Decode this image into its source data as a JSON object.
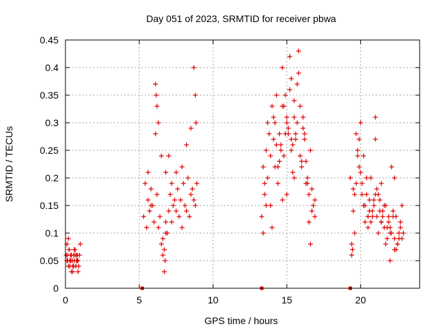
{
  "chart_data": {
    "type": "scatter",
    "title": "Day 051 of 2023, SRMTID for receiver pbwa",
    "xlabel": "GPS time / hours",
    "ylabel": "SRMTID / TECUs",
    "xlim": [
      0,
      24
    ],
    "ylim": [
      0,
      0.45
    ],
    "xticks": [
      "0",
      "5",
      "10",
      "15",
      "20"
    ],
    "xtick_values": [
      0,
      5,
      10,
      15,
      20
    ],
    "yticks": [
      "0",
      "0.05",
      "0.1",
      "0.15",
      "0.2",
      "0.25",
      "0.3",
      "0.35",
      "0.4",
      "0.45"
    ],
    "ytick_values": [
      0,
      0.05,
      0.1,
      0.15,
      0.2,
      0.25,
      0.3,
      0.35,
      0.4,
      0.45
    ],
    "grid": true,
    "marker": "+",
    "color": "#e00000",
    "zero_markers_x": [
      5.2,
      13.3,
      19.3
    ],
    "series": [
      {
        "name": "pbwa",
        "x": [
          0.05,
          0.1,
          0.15,
          0.2,
          0.25,
          0.3,
          0.35,
          0.4,
          0.45,
          0.5,
          0.55,
          0.6,
          0.65,
          0.7,
          0.75,
          0.8,
          0.85,
          0.9,
          0.95,
          1.0,
          0.1,
          0.2,
          0.3,
          0.4,
          0.5,
          0.6,
          0.7,
          0.8,
          0.15,
          0.35,
          0.55,
          0.75,
          0.25,
          0.45,
          0.65,
          0.85,
          5.3,
          5.4,
          5.5,
          5.6,
          5.7,
          5.8,
          5.9,
          6.0,
          6.1,
          6.2,
          6.3,
          6.4,
          6.5,
          6.6,
          6.7,
          6.8,
          6.9,
          7.0,
          7.1,
          7.2,
          7.3,
          7.4,
          7.5,
          7.6,
          7.7,
          7.8,
          7.9,
          8.0,
          8.1,
          8.2,
          8.3,
          8.4,
          8.5,
          8.6,
          8.7,
          8.8,
          8.9,
          6.1,
          6.15,
          6.2,
          6.3,
          6.5,
          6.8,
          7.0,
          7.2,
          7.5,
          8.5,
          8.7,
          8.8,
          8.85,
          6.7,
          6.75,
          6.8,
          6.6,
          5.6,
          5.8,
          7.9,
          8.2,
          13.3,
          13.4,
          13.5,
          13.6,
          13.7,
          13.8,
          13.9,
          14.0,
          14.1,
          14.2,
          14.3,
          14.4,
          14.5,
          14.6,
          14.7,
          14.8,
          14.9,
          15.0,
          15.1,
          15.2,
          15.3,
          15.4,
          15.5,
          15.6,
          15.7,
          15.8,
          15.9,
          16.0,
          16.1,
          16.2,
          16.3,
          16.4,
          16.5,
          16.6,
          16.7,
          16.8,
          16.9,
          13.5,
          13.7,
          13.9,
          14.1,
          14.3,
          14.5,
          14.7,
          14.9,
          15.1,
          15.3,
          15.5,
          15.7,
          15.9,
          16.1,
          16.3,
          16.5,
          16.7,
          14.2,
          14.4,
          14.6,
          14.8,
          15.0,
          15.2,
          15.4,
          15.6,
          15.8,
          16.0,
          16.2,
          16.4,
          13.4,
          13.6,
          14.0,
          15.0,
          15.5,
          16.6,
          16.9,
          14.7,
          15.3,
          19.3,
          19.4,
          19.5,
          19.6,
          19.7,
          19.8,
          19.9,
          20.0,
          20.1,
          20.2,
          20.3,
          20.4,
          20.5,
          20.6,
          20.7,
          20.8,
          20.9,
          21.0,
          21.1,
          21.2,
          21.3,
          21.4,
          21.5,
          21.6,
          21.7,
          21.8,
          21.9,
          22.0,
          22.1,
          22.2,
          22.3,
          22.4,
          22.5,
          22.6,
          22.7,
          22.8,
          22.9,
          19.6,
          19.8,
          20.0,
          20.2,
          20.4,
          20.6,
          20.8,
          21.0,
          21.2,
          21.4,
          21.6,
          21.8,
          22.0,
          22.2,
          22.4,
          22.6,
          22.8,
          19.5,
          19.7,
          19.9,
          20.1,
          20.3,
          20.5,
          20.7,
          20.9,
          21.1,
          21.3,
          21.5,
          21.7,
          21.9,
          22.1,
          22.3,
          22.5,
          22.7,
          19.4,
          19.45,
          20.5,
          21.0,
          21.4,
          22.0,
          22.3
        ],
        "y": [
          0.06,
          0.08,
          0.05,
          0.04,
          0.07,
          0.05,
          0.06,
          0.03,
          0.05,
          0.04,
          0.06,
          0.05,
          0.07,
          0.04,
          0.05,
          0.06,
          0.05,
          0.04,
          0.06,
          0.08,
          0.05,
          0.09,
          0.04,
          0.06,
          0.03,
          0.07,
          0.04,
          0.05,
          0.06,
          0.05,
          0.04,
          0.06,
          0.07,
          0.05,
          0.06,
          0.03,
          0.13,
          0.19,
          0.11,
          0.16,
          0.14,
          0.18,
          0.15,
          0.12,
          0.28,
          0.17,
          0.11,
          0.13,
          0.08,
          0.09,
          0.07,
          0.12,
          0.1,
          0.14,
          0.17,
          0.12,
          0.15,
          0.16,
          0.14,
          0.18,
          0.13,
          0.16,
          0.11,
          0.19,
          0.15,
          0.14,
          0.2,
          0.13,
          0.17,
          0.18,
          0.16,
          0.15,
          0.19,
          0.37,
          0.35,
          0.33,
          0.3,
          0.24,
          0.21,
          0.24,
          0.19,
          0.21,
          0.29,
          0.4,
          0.35,
          0.3,
          0.03,
          0.05,
          0.1,
          0.06,
          0.21,
          0.15,
          0.22,
          0.26,
          0.13,
          0.22,
          0.19,
          0.25,
          0.3,
          0.28,
          0.15,
          0.33,
          0.27,
          0.3,
          0.35,
          0.22,
          0.28,
          0.25,
          0.4,
          0.33,
          0.28,
          0.31,
          0.29,
          0.42,
          0.38,
          0.26,
          0.34,
          0.27,
          0.3,
          0.43,
          0.24,
          0.22,
          0.31,
          0.28,
          0.19,
          0.2,
          0.12,
          0.25,
          0.18,
          0.15,
          0.16,
          0.17,
          0.2,
          0.24,
          0.31,
          0.26,
          0.23,
          0.33,
          0.35,
          0.28,
          0.27,
          0.31,
          0.37,
          0.33,
          0.29,
          0.23,
          0.17,
          0.14,
          0.22,
          0.19,
          0.26,
          0.24,
          0.3,
          0.36,
          0.21,
          0.28,
          0.39,
          0.23,
          0.27,
          0.19,
          0.1,
          0.15,
          0.11,
          0.17,
          0.2,
          0.08,
          0.13,
          0.16,
          0.25,
          0.2,
          0.08,
          0.18,
          0.17,
          0.28,
          0.24,
          0.27,
          0.21,
          0.19,
          0.15,
          0.12,
          0.17,
          0.13,
          0.16,
          0.2,
          0.14,
          0.15,
          0.31,
          0.13,
          0.1,
          0.16,
          0.12,
          0.14,
          0.11,
          0.15,
          0.09,
          0.13,
          0.11,
          0.22,
          0.14,
          0.09,
          0.13,
          0.08,
          0.1,
          0.12,
          0.09,
          0.1,
          0.1,
          0.25,
          0.3,
          0.24,
          0.2,
          0.14,
          0.13,
          0.27,
          0.17,
          0.12,
          0.15,
          0.11,
          0.1,
          0.13,
          0.07,
          0.09,
          0.15,
          0.14,
          0.19,
          0.22,
          0.17,
          0.15,
          0.11,
          0.12,
          0.16,
          0.18,
          0.14,
          0.13,
          0.08,
          0.12,
          0.1,
          0.07,
          0.08,
          0.11,
          0.06,
          0.07,
          0.13,
          0.17,
          0.19,
          0.05,
          0.2
        ]
      }
    ]
  }
}
